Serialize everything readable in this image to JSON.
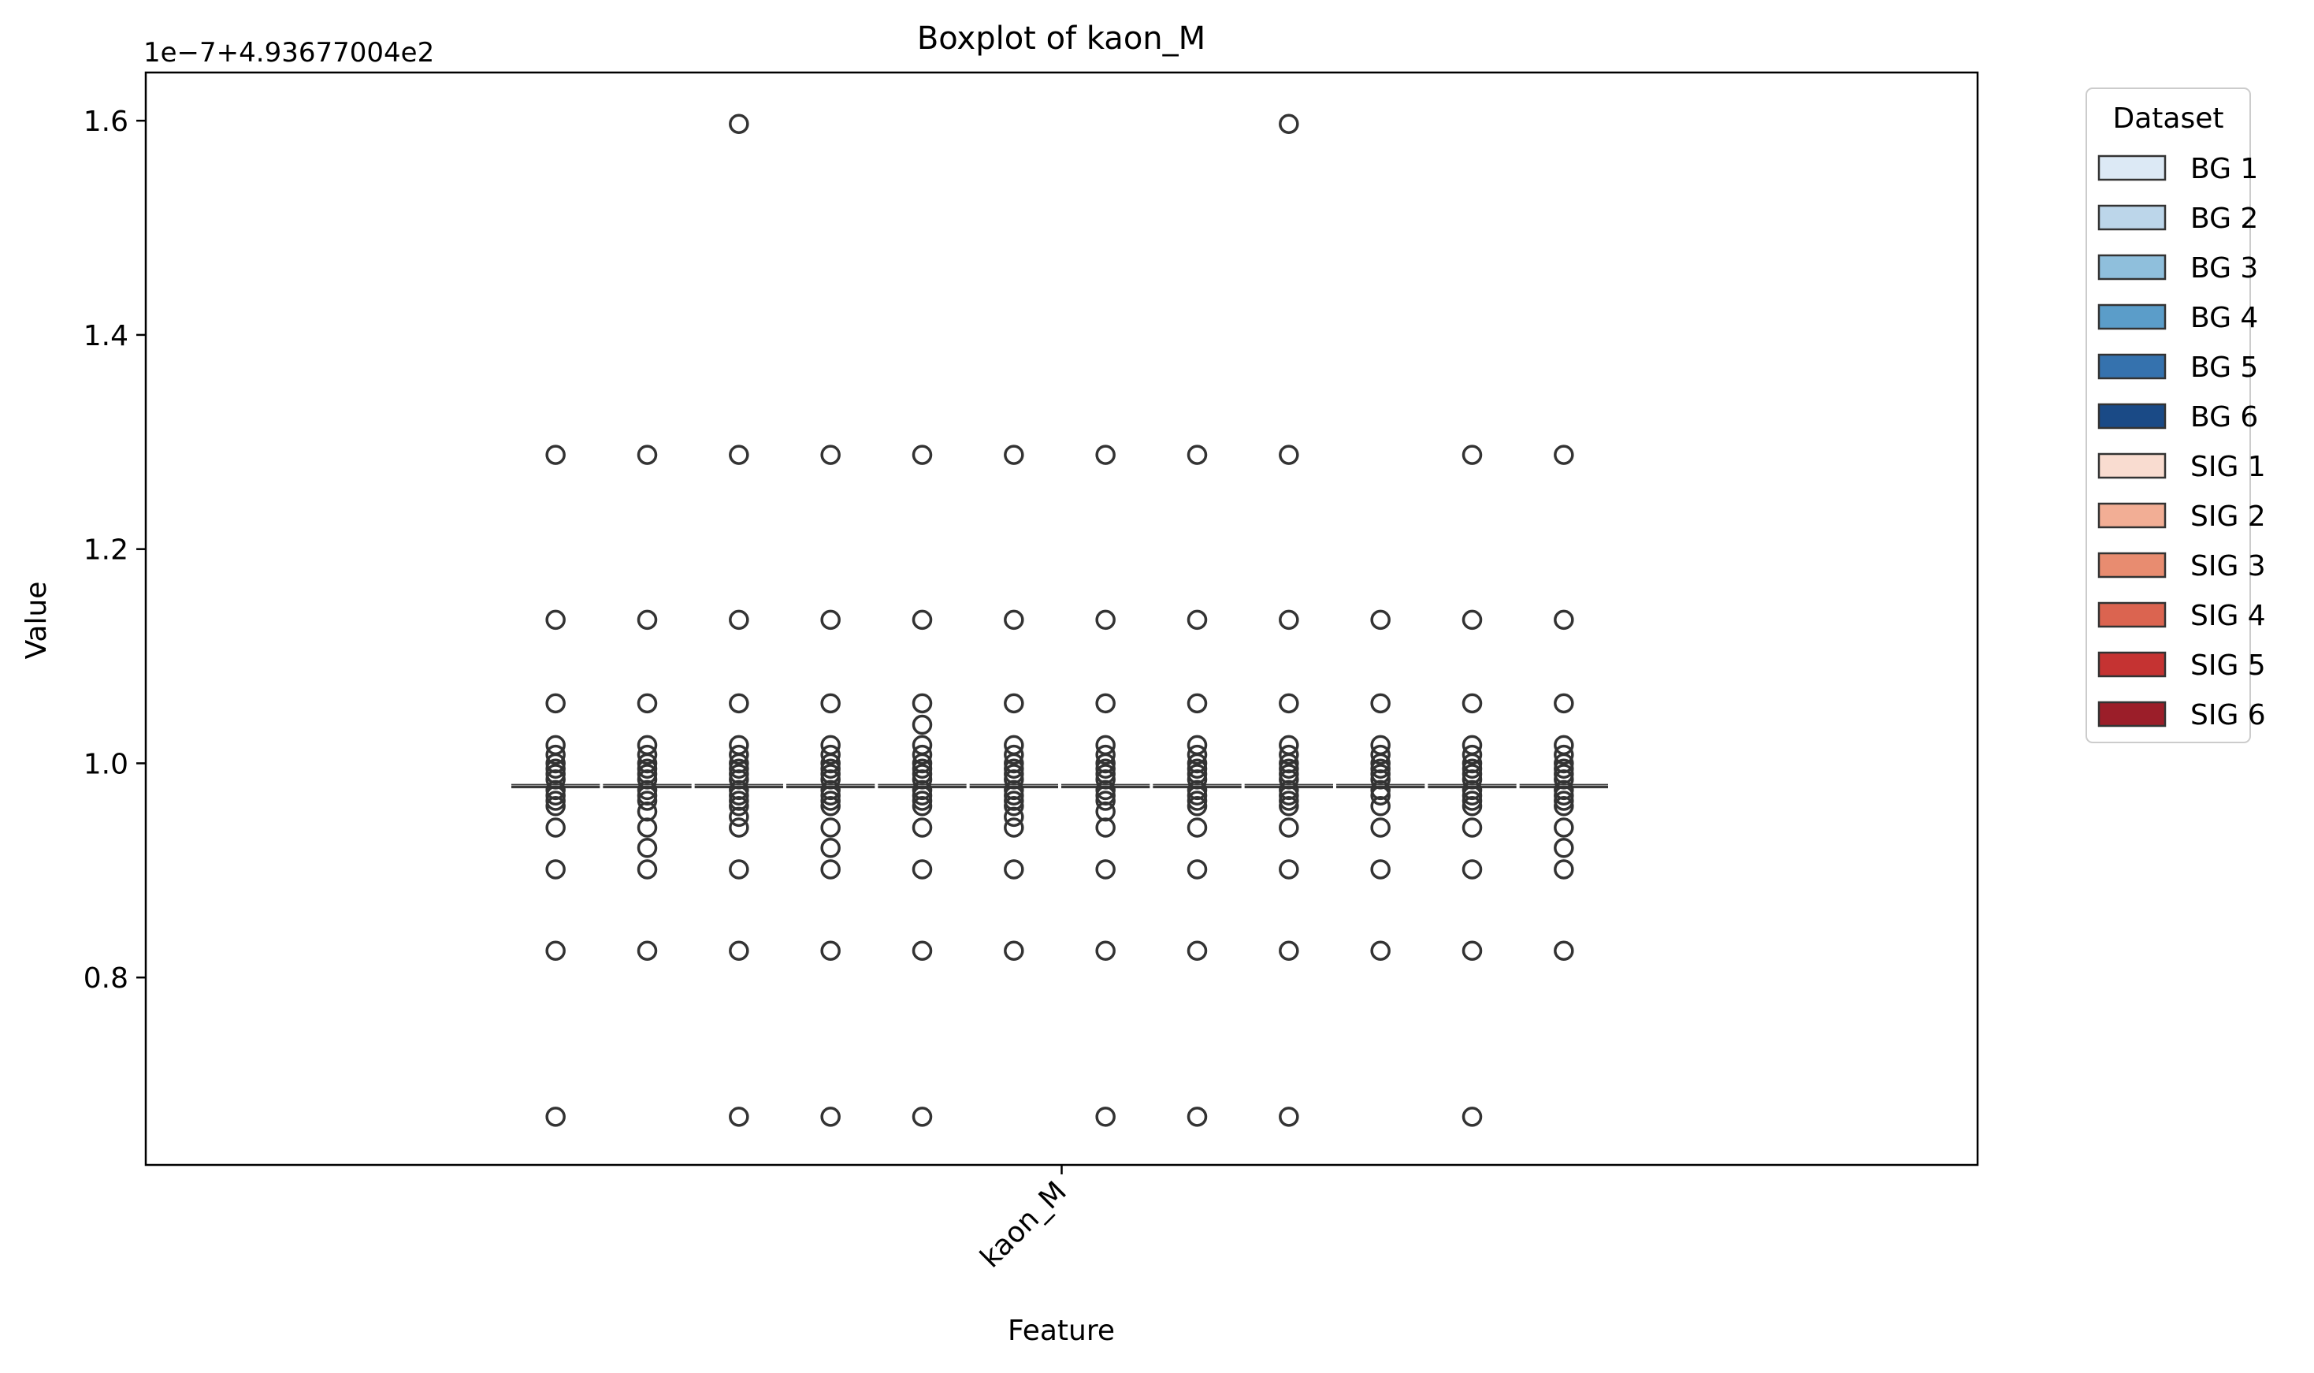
{
  "chart_data": {
    "type": "box",
    "title": "Boxplot of kaon_M",
    "xlabel": "Feature",
    "ylabel": "Value",
    "offset_text": "1e−7+4.93677004e2",
    "categories": [
      "kaon_M"
    ],
    "ylim": [
      0.625,
      1.645
    ],
    "yticks": [
      0.8,
      1.0,
      1.2,
      1.4,
      1.6
    ],
    "ytick_labels": [
      "0.8",
      "1.0",
      "1.2",
      "1.4",
      "1.6"
    ],
    "median": 0.978,
    "legend": {
      "title": "Dataset",
      "placement": "outside-top-right",
      "entries": [
        {
          "label": "BG 1",
          "color": "#dce9f5"
        },
        {
          "label": "BG 2",
          "color": "#bcd6ea"
        },
        {
          "label": "BG 3",
          "color": "#8fbfdc"
        },
        {
          "label": "BG 4",
          "color": "#5b9dc9"
        },
        {
          "label": "BG 5",
          "color": "#3572ae"
        },
        {
          "label": "BG 6",
          "color": "#1a4a86"
        },
        {
          "label": "SIG 1",
          "color": "#f9dcd0"
        },
        {
          "label": "SIG 2",
          "color": "#f2ae95"
        },
        {
          "label": "SIG 3",
          "color": "#e88c70"
        },
        {
          "label": "SIG 4",
          "color": "#db6450"
        },
        {
          "label": "SIG 5",
          "color": "#c53332"
        },
        {
          "label": "SIG 6",
          "color": "#9b1e29"
        }
      ]
    },
    "series": [
      {
        "name": "BG 1",
        "outliers": [
          0.67,
          0.825,
          0.901,
          0.94,
          0.96,
          0.965,
          0.97,
          0.975,
          0.985,
          0.99,
          0.995,
          1.0,
          1.008,
          1.017,
          1.056,
          1.134,
          1.288
        ]
      },
      {
        "name": "BG 2",
        "outliers": [
          0.825,
          0.901,
          0.921,
          0.94,
          0.955,
          0.965,
          0.97,
          0.975,
          0.985,
          0.99,
          0.995,
          1.0,
          1.008,
          1.017,
          1.056,
          1.134,
          1.288
        ]
      },
      {
        "name": "BG 3",
        "outliers": [
          0.67,
          0.825,
          0.901,
          0.94,
          0.95,
          0.96,
          0.965,
          0.97,
          0.975,
          0.985,
          0.99,
          0.995,
          1.0,
          1.008,
          1.017,
          1.056,
          1.134,
          1.288,
          1.597
        ]
      },
      {
        "name": "BG 4",
        "outliers": [
          0.67,
          0.825,
          0.901,
          0.921,
          0.94,
          0.96,
          0.965,
          0.97,
          0.975,
          0.985,
          0.99,
          0.995,
          1.0,
          1.008,
          1.017,
          1.056,
          1.134,
          1.288
        ]
      },
      {
        "name": "BG 5",
        "outliers": [
          0.67,
          0.825,
          0.901,
          0.94,
          0.96,
          0.965,
          0.97,
          0.975,
          0.985,
          0.99,
          0.995,
          1.0,
          1.008,
          1.017,
          1.036,
          1.056,
          1.134,
          1.288
        ]
      },
      {
        "name": "BG 6",
        "outliers": [
          0.825,
          0.901,
          0.94,
          0.95,
          0.96,
          0.965,
          0.97,
          0.975,
          0.985,
          0.99,
          0.995,
          1.0,
          1.008,
          1.017,
          1.056,
          1.134,
          1.288
        ]
      },
      {
        "name": "SIG 1",
        "outliers": [
          0.67,
          0.825,
          0.901,
          0.94,
          0.955,
          0.965,
          0.97,
          0.975,
          0.985,
          0.99,
          0.995,
          1.0,
          1.008,
          1.017,
          1.056,
          1.134,
          1.288
        ]
      },
      {
        "name": "SIG 2",
        "outliers": [
          0.67,
          0.825,
          0.901,
          0.94,
          0.96,
          0.965,
          0.97,
          0.975,
          0.985,
          0.99,
          0.995,
          1.0,
          1.008,
          1.017,
          1.056,
          1.134,
          1.288
        ]
      },
      {
        "name": "SIG 3",
        "outliers": [
          0.67,
          0.825,
          0.901,
          0.94,
          0.96,
          0.965,
          0.97,
          0.975,
          0.985,
          0.99,
          0.995,
          1.0,
          1.008,
          1.017,
          1.056,
          1.134,
          1.288,
          1.597
        ]
      },
      {
        "name": "SIG 4",
        "outliers": [
          0.825,
          0.901,
          0.94,
          0.96,
          0.97,
          0.975,
          0.985,
          0.99,
          0.995,
          1.0,
          1.008,
          1.017,
          1.056,
          1.134
        ]
      },
      {
        "name": "SIG 5",
        "outliers": [
          0.67,
          0.825,
          0.901,
          0.94,
          0.96,
          0.965,
          0.97,
          0.975,
          0.985,
          0.99,
          0.995,
          1.0,
          1.008,
          1.017,
          1.056,
          1.134,
          1.288
        ]
      },
      {
        "name": "SIG 6",
        "outliers": [
          0.825,
          0.901,
          0.921,
          0.94,
          0.96,
          0.965,
          0.97,
          0.975,
          0.985,
          0.99,
          0.995,
          1.0,
          1.008,
          1.017,
          1.056,
          1.134,
          1.288
        ]
      }
    ]
  }
}
